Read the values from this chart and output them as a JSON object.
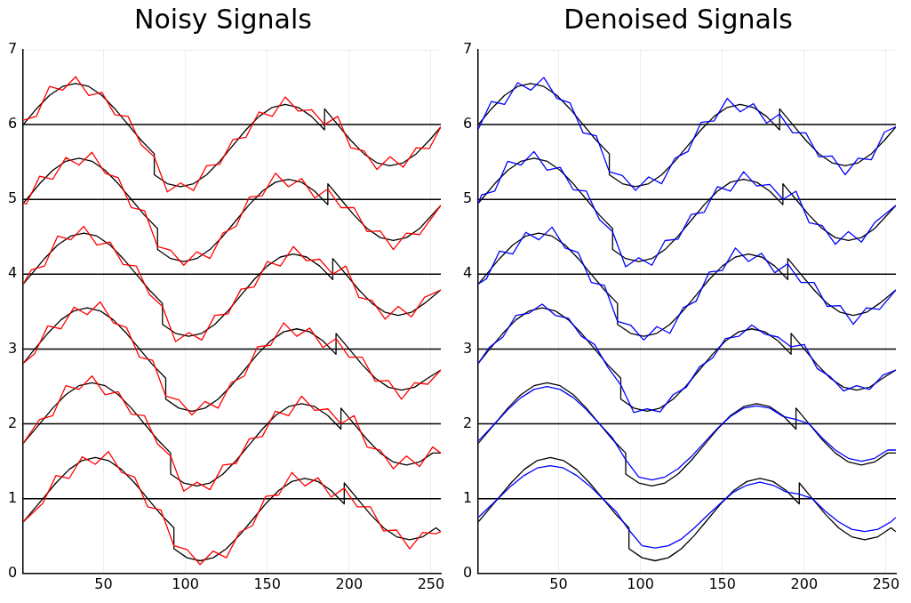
{
  "chart_data": [
    {
      "type": "line",
      "title": "Noisy Signals",
      "xlim": [
        1,
        256
      ],
      "xticks": [
        50,
        100,
        150,
        200,
        250
      ],
      "ylim": [
        0,
        7
      ],
      "yticks": [
        0,
        1,
        2,
        3,
        4,
        5,
        6,
        7
      ],
      "grid": true,
      "legend": false,
      "marker": "none",
      "line_style": "solid",
      "ref_lines": [
        {
          "axis": "y",
          "value": 1,
          "color": "#000000"
        },
        {
          "axis": "y",
          "value": 2,
          "color": "#000000"
        },
        {
          "axis": "y",
          "value": 3,
          "color": "#000000"
        },
        {
          "axis": "y",
          "value": 4,
          "color": "#000000"
        },
        {
          "axis": "y",
          "value": 5,
          "color": "#000000"
        },
        {
          "axis": "y",
          "value": 6,
          "color": "#000000"
        }
      ],
      "series": [
        {
          "color": "#ff0000",
          "x": [
            1,
            9,
            17,
            25,
            33,
            41,
            49,
            57,
            65,
            73,
            81,
            89,
            97,
            105,
            113,
            121,
            129,
            137,
            145,
            153,
            161,
            169,
            177,
            185,
            193,
            201,
            209,
            217,
            225,
            233,
            241,
            249,
            256
          ],
          "values": [
            6.06,
            6.11,
            6.51,
            6.46,
            6.64,
            6.39,
            6.43,
            6.13,
            6.11,
            5.73,
            5.57,
            5.1,
            5.22,
            5.12,
            5.45,
            5.47,
            5.8,
            5.83,
            6.17,
            6.11,
            6.37,
            6.18,
            6.2,
            6,
            6.11,
            5.69,
            5.65,
            5.4,
            5.57,
            5.43,
            5.69,
            5.68,
            5.97
          ]
        },
        {
          "color": "#ff0000",
          "x": [
            1,
            3,
            11,
            19,
            27,
            35,
            43,
            51,
            59,
            67,
            75,
            83,
            91,
            99,
            107,
            115,
            123,
            131,
            139,
            147,
            155,
            163,
            171,
            179,
            187,
            195,
            203,
            211,
            219,
            227,
            235,
            243,
            256
          ],
          "values": [
            4.95,
            4.94,
            5.31,
            5.27,
            5.56,
            5.46,
            5.63,
            5.35,
            5.29,
            4.89,
            4.85,
            4.37,
            4.32,
            4.12,
            4.3,
            4.21,
            4.55,
            4.64,
            5.03,
            5.05,
            5.35,
            5.17,
            5.28,
            5.02,
            5.14,
            4.89,
            4.89,
            4.57,
            4.58,
            4.33,
            4.55,
            4.53,
            4.92
          ]
        },
        {
          "color": "#ff0000",
          "x": [
            1,
            6,
            14,
            22,
            30,
            38,
            46,
            54,
            62,
            70,
            78,
            86,
            94,
            102,
            110,
            118,
            126,
            134,
            142,
            150,
            158,
            166,
            174,
            182,
            190,
            198,
            206,
            214,
            222,
            230,
            238,
            246,
            256
          ],
          "values": [
            3.87,
            4.06,
            4.11,
            4.51,
            4.46,
            4.64,
            4.39,
            4.43,
            4.13,
            4.11,
            3.73,
            3.57,
            3.1,
            3.22,
            3.12,
            3.45,
            3.47,
            3.8,
            3.83,
            4.17,
            4.11,
            4.37,
            4.18,
            4.2,
            4,
            4.11,
            3.69,
            3.65,
            3.4,
            3.57,
            3.43,
            3.69,
            3.79
          ]
        },
        {
          "color": "#ff0000",
          "x": [
            1,
            8,
            16,
            24,
            32,
            40,
            48,
            56,
            64,
            72,
            80,
            88,
            96,
            104,
            112,
            120,
            128,
            136,
            144,
            152,
            160,
            168,
            176,
            184,
            192,
            200,
            208,
            216,
            224,
            232,
            240,
            248,
            256
          ],
          "values": [
            2.81,
            2.94,
            3.31,
            3.27,
            3.56,
            3.46,
            3.63,
            3.35,
            3.29,
            2.89,
            2.85,
            2.37,
            2.32,
            2.12,
            2.3,
            2.21,
            2.55,
            2.64,
            3.03,
            3.05,
            3.35,
            3.17,
            3.28,
            3.02,
            3.14,
            2.89,
            2.89,
            2.57,
            2.58,
            2.33,
            2.55,
            2.53,
            2.72
          ]
        },
        {
          "color": "#ff0000",
          "x": [
            1,
            11,
            19,
            27,
            35,
            43,
            51,
            59,
            67,
            75,
            83,
            91,
            99,
            107,
            115,
            123,
            131,
            139,
            147,
            155,
            163,
            171,
            179,
            187,
            195,
            203,
            211,
            219,
            227,
            235,
            243,
            251,
            256
          ],
          "values": [
            1.74,
            2.06,
            2.11,
            2.51,
            2.46,
            2.64,
            2.39,
            2.43,
            2.13,
            2.11,
            1.73,
            1.57,
            1.1,
            1.22,
            1.12,
            1.45,
            1.47,
            1.8,
            1.83,
            2.17,
            2.11,
            2.37,
            2.18,
            2.2,
            2,
            2.11,
            1.69,
            1.65,
            1.4,
            1.57,
            1.43,
            1.69,
            1.61
          ]
        },
        {
          "color": "#ff0000",
          "x": [
            1,
            13,
            21,
            29,
            37,
            45,
            53,
            61,
            69,
            77,
            85,
            93,
            101,
            109,
            117,
            125,
            133,
            141,
            149,
            157,
            165,
            173,
            181,
            189,
            197,
            205,
            213,
            221,
            229,
            237,
            245,
            253,
            256
          ],
          "values": [
            0.69,
            0.94,
            1.31,
            1.27,
            1.56,
            1.46,
            1.63,
            1.35,
            1.29,
            0.89,
            0.85,
            0.37,
            0.32,
            0.12,
            0.3,
            0.21,
            0.55,
            0.64,
            1.03,
            1.05,
            1.35,
            1.17,
            1.28,
            1.02,
            1.14,
            0.89,
            0.89,
            0.57,
            0.58,
            0.33,
            0.55,
            0.53,
            0.56
          ]
        },
        {
          "color": "#000000",
          "x": [
            1,
            9,
            17,
            25,
            33,
            41,
            49,
            57,
            65,
            73,
            81,
            81,
            89,
            97,
            105,
            113,
            121,
            129,
            137,
            145,
            153,
            161,
            169,
            177,
            185,
            185,
            193,
            201,
            209,
            217,
            225,
            233,
            241,
            249,
            256
          ],
          "values": [
            6,
            6.21,
            6.39,
            6.51,
            6.55,
            6.51,
            6.39,
            6.21,
            6,
            5.79,
            5.61,
            5.33,
            5.21,
            5.17,
            5.21,
            5.33,
            5.51,
            5.72,
            5.93,
            6.11,
            6.23,
            6.27,
            6.23,
            6.11,
            5.93,
            6.21,
            6,
            5.79,
            5.61,
            5.49,
            5.45,
            5.49,
            5.61,
            5.79,
            5.97
          ]
        },
        {
          "color": "#000000",
          "x": [
            1,
            3,
            11,
            19,
            27,
            35,
            43,
            51,
            59,
            67,
            75,
            83,
            83,
            91,
            99,
            107,
            115,
            123,
            131,
            139,
            147,
            155,
            163,
            171,
            179,
            187,
            187,
            195,
            203,
            211,
            219,
            227,
            235,
            243,
            256
          ],
          "values": [
            4.95,
            5,
            5.21,
            5.39,
            5.51,
            5.55,
            5.51,
            5.39,
            5.21,
            5,
            4.79,
            4.61,
            4.33,
            4.21,
            4.17,
            4.21,
            4.33,
            4.51,
            4.72,
            4.93,
            5.11,
            5.23,
            5.27,
            5.23,
            5.11,
            4.93,
            5.21,
            5,
            4.79,
            4.61,
            4.49,
            4.45,
            4.49,
            4.61,
            4.92
          ]
        },
        {
          "color": "#000000",
          "x": [
            1,
            6,
            14,
            22,
            30,
            38,
            46,
            54,
            62,
            70,
            78,
            86,
            86,
            94,
            102,
            110,
            118,
            126,
            134,
            142,
            150,
            158,
            166,
            174,
            182,
            190,
            190,
            198,
            206,
            214,
            222,
            230,
            238,
            246,
            256
          ],
          "values": [
            3.87,
            4,
            4.21,
            4.39,
            4.51,
            4.55,
            4.51,
            4.39,
            4.21,
            4,
            3.79,
            3.61,
            3.33,
            3.21,
            3.17,
            3.21,
            3.33,
            3.51,
            3.72,
            3.93,
            4.11,
            4.23,
            4.27,
            4.23,
            4.11,
            3.93,
            4.21,
            4,
            3.79,
            3.61,
            3.49,
            3.45,
            3.49,
            3.61,
            3.79
          ]
        },
        {
          "color": "#000000",
          "x": [
            1,
            8,
            16,
            24,
            32,
            40,
            48,
            56,
            64,
            72,
            80,
            88,
            88,
            96,
            104,
            112,
            120,
            128,
            136,
            144,
            152,
            160,
            168,
            176,
            184,
            192,
            192,
            200,
            208,
            216,
            224,
            232,
            240,
            248,
            256
          ],
          "values": [
            2.81,
            3,
            3.21,
            3.39,
            3.51,
            3.55,
            3.51,
            3.39,
            3.21,
            3,
            2.79,
            2.61,
            2.33,
            2.21,
            2.17,
            2.21,
            2.33,
            2.51,
            2.72,
            2.93,
            3.11,
            3.23,
            3.27,
            3.23,
            3.11,
            2.93,
            3.21,
            3,
            2.79,
            2.61,
            2.49,
            2.45,
            2.49,
            2.61,
            2.72
          ]
        },
        {
          "color": "#000000",
          "x": [
            1,
            11,
            19,
            27,
            35,
            43,
            51,
            59,
            67,
            75,
            83,
            91,
            91,
            99,
            107,
            115,
            123,
            131,
            139,
            147,
            155,
            163,
            171,
            179,
            187,
            195,
            195,
            203,
            211,
            219,
            227,
            235,
            243,
            251,
            256
          ],
          "values": [
            1.74,
            2,
            2.21,
            2.39,
            2.51,
            2.55,
            2.51,
            2.39,
            2.21,
            2,
            1.79,
            1.61,
            1.33,
            1.21,
            1.17,
            1.21,
            1.33,
            1.51,
            1.72,
            1.93,
            2.11,
            2.23,
            2.27,
            2.23,
            2.11,
            1.93,
            2.21,
            2,
            1.79,
            1.61,
            1.49,
            1.45,
            1.49,
            1.61,
            1.61
          ]
        },
        {
          "color": "#000000",
          "x": [
            1,
            13,
            21,
            29,
            37,
            45,
            53,
            61,
            69,
            77,
            85,
            93,
            93,
            101,
            109,
            117,
            125,
            133,
            141,
            149,
            157,
            165,
            173,
            181,
            189,
            197,
            197,
            205,
            213,
            221,
            229,
            237,
            245,
            253,
            256
          ],
          "values": [
            0.69,
            1,
            1.21,
            1.39,
            1.51,
            1.55,
            1.51,
            1.39,
            1.21,
            1,
            0.79,
            0.61,
            0.33,
            0.21,
            0.17,
            0.21,
            0.33,
            0.51,
            0.72,
            0.93,
            1.11,
            1.23,
            1.27,
            1.23,
            1.11,
            0.93,
            1.21,
            1,
            0.79,
            0.61,
            0.49,
            0.45,
            0.49,
            0.61,
            0.56
          ]
        }
      ]
    },
    {
      "type": "line",
      "title": "Denoised Signals",
      "xlim": [
        1,
        256
      ],
      "xticks": [
        50,
        100,
        150,
        200,
        250
      ],
      "ylim": [
        0,
        7
      ],
      "yticks": [
        0,
        1,
        2,
        3,
        4,
        5,
        6,
        7
      ],
      "grid": true,
      "legend": false,
      "marker": "none",
      "line_style": "solid",
      "ref_lines": [
        {
          "axis": "y",
          "value": 1,
          "color": "#000000"
        },
        {
          "axis": "y",
          "value": 2,
          "color": "#000000"
        },
        {
          "axis": "y",
          "value": 3,
          "color": "#000000"
        },
        {
          "axis": "y",
          "value": 4,
          "color": "#000000"
        },
        {
          "axis": "y",
          "value": 5,
          "color": "#000000"
        },
        {
          "axis": "y",
          "value": 6,
          "color": "#000000"
        }
      ],
      "series": [
        {
          "color": "#0000ff",
          "x": [
            1,
            9,
            17,
            25,
            33,
            41,
            49,
            57,
            65,
            73,
            81,
            89,
            97,
            105,
            113,
            121,
            129,
            137,
            145,
            153,
            161,
            169,
            177,
            185,
            193,
            201,
            209,
            217,
            225,
            233,
            241,
            249,
            256
          ],
          "values": [
            5.94,
            6.31,
            6.27,
            6.56,
            6.46,
            6.63,
            6.35,
            6.29,
            5.89,
            5.85,
            5.37,
            5.32,
            5.12,
            5.3,
            5.21,
            5.55,
            5.64,
            6.03,
            6.05,
            6.35,
            6.17,
            6.28,
            6.02,
            6.14,
            5.89,
            5.89,
            5.57,
            5.58,
            5.33,
            5.55,
            5.53,
            5.9,
            5.97
          ]
        },
        {
          "color": "#0000ff",
          "x": [
            1,
            3,
            11,
            19,
            27,
            35,
            43,
            51,
            59,
            67,
            75,
            83,
            91,
            99,
            107,
            115,
            123,
            131,
            139,
            147,
            155,
            163,
            171,
            179,
            187,
            195,
            203,
            211,
            219,
            227,
            235,
            243,
            256
          ],
          "values": [
            4.95,
            5.06,
            5.11,
            5.51,
            5.46,
            5.64,
            5.39,
            5.43,
            5.13,
            5.11,
            4.73,
            4.57,
            4.1,
            4.22,
            4.12,
            4.45,
            4.47,
            4.8,
            4.83,
            5.17,
            5.11,
            5.37,
            5.18,
            5.2,
            5,
            5.11,
            4.69,
            4.65,
            4.4,
            4.57,
            4.43,
            4.69,
            4.92
          ]
        },
        {
          "color": "#0000ff",
          "x": [
            1,
            6,
            14,
            22,
            30,
            38,
            46,
            54,
            62,
            70,
            78,
            86,
            94,
            102,
            110,
            118,
            126,
            134,
            142,
            150,
            158,
            166,
            174,
            182,
            190,
            198,
            206,
            214,
            222,
            230,
            238,
            246,
            256
          ],
          "values": [
            3.87,
            3.94,
            4.31,
            4.27,
            4.56,
            4.46,
            4.63,
            4.35,
            4.29,
            3.89,
            3.85,
            3.37,
            3.32,
            3.12,
            3.3,
            3.21,
            3.55,
            3.64,
            4.03,
            4.05,
            4.35,
            4.17,
            4.28,
            4.02,
            4.14,
            3.89,
            3.89,
            3.57,
            3.58,
            3.33,
            3.55,
            3.53,
            3.79
          ]
        },
        {
          "color": "#0000ff",
          "x": [
            1,
            8,
            16,
            24,
            32,
            40,
            48,
            56,
            64,
            72,
            80,
            88,
            96,
            104,
            112,
            120,
            128,
            136,
            144,
            152,
            160,
            168,
            176,
            184,
            192,
            200,
            208,
            216,
            224,
            232,
            240,
            248,
            256
          ],
          "values": [
            2.81,
            3.03,
            3.16,
            3.45,
            3.48,
            3.6,
            3.45,
            3.41,
            3.17,
            3.06,
            2.76,
            2.52,
            2.15,
            2.2,
            2.16,
            2.39,
            2.49,
            2.76,
            2.88,
            3.14,
            3.17,
            3.32,
            3.2,
            3.16,
            3.03,
            3.06,
            2.74,
            2.63,
            2.44,
            2.51,
            2.46,
            2.65,
            2.72
          ]
        },
        {
          "color": "#0000ff",
          "x": [
            1,
            11,
            19,
            27,
            35,
            43,
            51,
            59,
            67,
            75,
            83,
            91,
            99,
            107,
            115,
            123,
            131,
            139,
            147,
            155,
            163,
            171,
            179,
            187,
            195,
            203,
            211,
            219,
            227,
            235,
            243,
            251,
            256
          ],
          "values": [
            1.77,
            2,
            2.19,
            2.35,
            2.46,
            2.5,
            2.46,
            2.35,
            2.19,
            2,
            1.81,
            1.52,
            1.29,
            1.25,
            1.29,
            1.4,
            1.56,
            1.75,
            1.94,
            2.1,
            2.21,
            2.24,
            2.21,
            2.1,
            2.06,
            2,
            1.81,
            1.65,
            1.54,
            1.5,
            1.54,
            1.65,
            1.65
          ]
        },
        {
          "color": "#0000ff",
          "x": [
            1,
            13,
            21,
            29,
            37,
            45,
            53,
            61,
            69,
            77,
            85,
            93,
            101,
            109,
            117,
            125,
            133,
            141,
            149,
            157,
            165,
            173,
            181,
            189,
            197,
            205,
            213,
            221,
            229,
            237,
            245,
            253,
            256
          ],
          "values": [
            0.75,
            1,
            1.17,
            1.31,
            1.41,
            1.44,
            1.41,
            1.31,
            1.17,
            1,
            0.83,
            0.58,
            0.37,
            0.34,
            0.37,
            0.46,
            0.61,
            0.78,
            0.94,
            1.09,
            1.18,
            1.22,
            1.18,
            1.09,
            1.06,
            1,
            0.83,
            0.69,
            0.59,
            0.56,
            0.59,
            0.69,
            0.75
          ]
        },
        {
          "color": "#000000",
          "x": [
            1,
            9,
            17,
            25,
            33,
            41,
            49,
            57,
            65,
            73,
            81,
            81,
            89,
            97,
            105,
            113,
            121,
            129,
            137,
            145,
            153,
            161,
            169,
            177,
            185,
            185,
            193,
            201,
            209,
            217,
            225,
            233,
            241,
            249,
            256
          ],
          "values": [
            6,
            6.21,
            6.39,
            6.51,
            6.55,
            6.51,
            6.39,
            6.21,
            6,
            5.79,
            5.61,
            5.33,
            5.21,
            5.17,
            5.21,
            5.33,
            5.51,
            5.72,
            5.93,
            6.11,
            6.23,
            6.27,
            6.23,
            6.11,
            5.93,
            6.21,
            6,
            5.79,
            5.61,
            5.49,
            5.45,
            5.49,
            5.61,
            5.79,
            5.97
          ]
        },
        {
          "color": "#000000",
          "x": [
            1,
            3,
            11,
            19,
            27,
            35,
            43,
            51,
            59,
            67,
            75,
            83,
            83,
            91,
            99,
            107,
            115,
            123,
            131,
            139,
            147,
            155,
            163,
            171,
            179,
            187,
            187,
            195,
            203,
            211,
            219,
            227,
            235,
            243,
            256
          ],
          "values": [
            4.95,
            5,
            5.21,
            5.39,
            5.51,
            5.55,
            5.51,
            5.39,
            5.21,
            5,
            4.79,
            4.61,
            4.33,
            4.21,
            4.17,
            4.21,
            4.33,
            4.51,
            4.72,
            4.93,
            5.11,
            5.23,
            5.27,
            5.23,
            5.11,
            4.93,
            5.21,
            5,
            4.79,
            4.61,
            4.49,
            4.45,
            4.49,
            4.61,
            4.92
          ]
        },
        {
          "color": "#000000",
          "x": [
            1,
            6,
            14,
            22,
            30,
            38,
            46,
            54,
            62,
            70,
            78,
            86,
            86,
            94,
            102,
            110,
            118,
            126,
            134,
            142,
            150,
            158,
            166,
            174,
            182,
            190,
            190,
            198,
            206,
            214,
            222,
            230,
            238,
            246,
            256
          ],
          "values": [
            3.87,
            4,
            4.21,
            4.39,
            4.51,
            4.55,
            4.51,
            4.39,
            4.21,
            4,
            3.79,
            3.61,
            3.33,
            3.21,
            3.17,
            3.21,
            3.33,
            3.51,
            3.72,
            3.93,
            4.11,
            4.23,
            4.27,
            4.23,
            4.11,
            3.93,
            4.21,
            4,
            3.79,
            3.61,
            3.49,
            3.45,
            3.49,
            3.61,
            3.79
          ]
        },
        {
          "color": "#000000",
          "x": [
            1,
            8,
            16,
            24,
            32,
            40,
            48,
            56,
            64,
            72,
            80,
            88,
            88,
            96,
            104,
            112,
            120,
            128,
            136,
            144,
            152,
            160,
            168,
            176,
            184,
            192,
            192,
            200,
            208,
            216,
            224,
            232,
            240,
            248,
            256
          ],
          "values": [
            2.81,
            3,
            3.21,
            3.39,
            3.51,
            3.55,
            3.51,
            3.39,
            3.21,
            3,
            2.79,
            2.61,
            2.33,
            2.21,
            2.17,
            2.21,
            2.33,
            2.51,
            2.72,
            2.93,
            3.11,
            3.23,
            3.27,
            3.23,
            3.11,
            2.93,
            3.21,
            3,
            2.79,
            2.61,
            2.49,
            2.45,
            2.49,
            2.61,
            2.72
          ]
        },
        {
          "color": "#000000",
          "x": [
            1,
            11,
            19,
            27,
            35,
            43,
            51,
            59,
            67,
            75,
            83,
            91,
            91,
            99,
            107,
            115,
            123,
            131,
            139,
            147,
            155,
            163,
            171,
            179,
            187,
            195,
            195,
            203,
            211,
            219,
            227,
            235,
            243,
            251,
            256
          ],
          "values": [
            1.74,
            2,
            2.21,
            2.39,
            2.51,
            2.55,
            2.51,
            2.39,
            2.21,
            2,
            1.79,
            1.61,
            1.33,
            1.21,
            1.17,
            1.21,
            1.33,
            1.51,
            1.72,
            1.93,
            2.11,
            2.23,
            2.27,
            2.23,
            2.11,
            1.93,
            2.21,
            2,
            1.79,
            1.61,
            1.49,
            1.45,
            1.49,
            1.61,
            1.61
          ]
        },
        {
          "color": "#000000",
          "x": [
            1,
            13,
            21,
            29,
            37,
            45,
            53,
            61,
            69,
            77,
            85,
            93,
            93,
            101,
            109,
            117,
            125,
            133,
            141,
            149,
            157,
            165,
            173,
            181,
            189,
            197,
            197,
            205,
            213,
            221,
            229,
            237,
            245,
            253,
            256
          ],
          "values": [
            0.69,
            1,
            1.21,
            1.39,
            1.51,
            1.55,
            1.51,
            1.39,
            1.21,
            1,
            0.79,
            0.61,
            0.33,
            0.21,
            0.17,
            0.21,
            0.33,
            0.51,
            0.72,
            0.93,
            1.11,
            1.23,
            1.27,
            1.23,
            1.11,
            0.93,
            1.21,
            1,
            0.79,
            0.61,
            0.49,
            0.45,
            0.49,
            0.61,
            0.56
          ]
        }
      ]
    }
  ]
}
